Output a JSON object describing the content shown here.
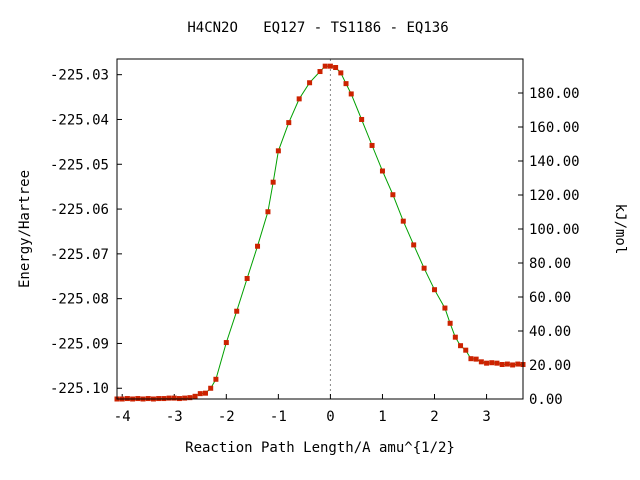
{
  "chart_data": {
    "type": "line",
    "title": "H4CN2O   EQ127 - TS1186 - EQ136",
    "xlabel": "Reaction Path Length/A amu^{1/2}",
    "ylabel": "Energy/Hartree",
    "y2label": "kJ/mol",
    "xlim": [
      -4.1,
      3.7
    ],
    "ylim": [
      -225.1024,
      -225.0265
    ],
    "y2lim": [
      0,
      200
    ],
    "x_ticks": [
      -4,
      -3,
      -2,
      -1,
      0,
      1,
      2,
      3
    ],
    "x_tick_labels": [
      "-4",
      "-3",
      "-2",
      "-1",
      "0",
      "1",
      "2",
      "3"
    ],
    "y_ticks": [
      -225.03,
      -225.04,
      -225.05,
      -225.06,
      -225.07,
      -225.08,
      -225.09,
      -225.1
    ],
    "y_tick_labels": [
      "-225.03",
      "-225.04",
      "-225.05",
      "-225.06",
      "-225.07",
      "-225.08",
      "-225.09",
      "-225.10"
    ],
    "y2_ticks": [
      0,
      20,
      40,
      60,
      80,
      100,
      120,
      140,
      160,
      180
    ],
    "y2_tick_labels": [
      "0.00",
      "20.00",
      "40.00",
      "60.00",
      "80.00",
      "100.00",
      "120.00",
      "140.00",
      "160.00",
      "180.00"
    ],
    "ts_x": 0,
    "grid": false,
    "line_color": "#00a000",
    "marker_color": "#cc2200",
    "series": [
      {
        "x": [
          -4.1,
          -4.0,
          -3.9,
          -3.8,
          -3.7,
          -3.6,
          -3.5,
          -3.4,
          -3.3,
          -3.2,
          -3.1,
          -3.0,
          -2.9,
          -2.8,
          -2.7,
          -2.6,
          -2.5,
          -2.4,
          -2.3,
          -2.2,
          -2.0,
          -1.8,
          -1.6,
          -1.4,
          -1.2,
          -1.1,
          -1.0,
          -0.8,
          -0.6,
          -0.4,
          -0.2,
          -0.1,
          0.0,
          0.1,
          0.2,
          0.3,
          0.4,
          0.6,
          0.8,
          1.0,
          1.2,
          1.4,
          1.6,
          1.8,
          2.0,
          2.2,
          2.3,
          2.4,
          2.5,
          2.6,
          2.7,
          2.8,
          2.9,
          3.0,
          3.1,
          3.2,
          3.3,
          3.4,
          3.5,
          3.6,
          3.7
        ],
        "y": [
          -225.1024,
          -225.1024,
          -225.1023,
          -225.1024,
          -225.1023,
          -225.1024,
          -225.1023,
          -225.1024,
          -225.1023,
          -225.1023,
          -225.1022,
          -225.1022,
          -225.1023,
          -225.1022,
          -225.1021,
          -225.1018,
          -225.1012,
          -225.1011,
          -225.1,
          -225.098,
          -225.0898,
          -225.0828,
          -225.0755,
          -225.0683,
          -225.0606,
          -225.054,
          -225.047,
          -225.0407,
          -225.0354,
          -225.0318,
          -225.0293,
          -225.0281,
          -225.0281,
          -225.0284,
          -225.0296,
          -225.032,
          -225.0343,
          -225.04,
          -225.0458,
          -225.0515,
          -225.0568,
          -225.0627,
          -225.068,
          -225.0732,
          -225.078,
          -225.0821,
          -225.0855,
          -225.0886,
          -225.0905,
          -225.0915,
          -225.0934,
          -225.0935,
          -225.0941,
          -225.0944,
          -225.0943,
          -225.0944,
          -225.0947,
          -225.0946,
          -225.0948,
          -225.0946,
          -225.0947
        ]
      }
    ]
  }
}
